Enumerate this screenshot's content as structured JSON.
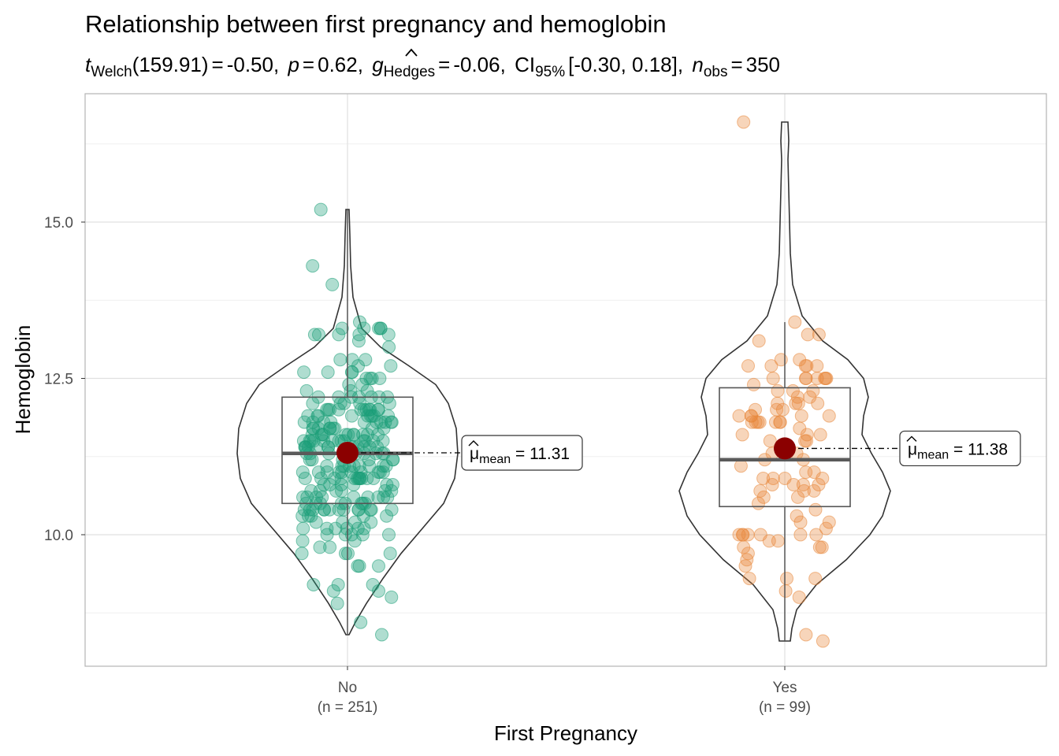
{
  "chart_data": {
    "type": "violin-box-scatter",
    "title": "Relationship between first pregnancy and hemoglobin",
    "subtitle": {
      "t_sym": "t",
      "t_sub": "Welch",
      "df": "(159.91)",
      "t_val": "-0.50",
      "p_sym": "p",
      "p_val": "0.62",
      "g_sym": "g",
      "g_sub": "Hedges",
      "g_val": "-0.06",
      "ci_sym": "CI",
      "ci_sub": "95%",
      "ci_val": "[-0.30, 0.18]",
      "n_sym": "n",
      "n_sub": "obs",
      "n_val": "350",
      "eq": "=",
      "sep": ","
    },
    "xlabel": "First Pregnancy",
    "ylabel": "Hemoglobin",
    "ylim": [
      7.7,
      16.9
    ],
    "yticks": [
      10.0,
      12.5,
      15.0
    ],
    "ytick_labels": [
      "10.0",
      "12.5",
      "15.0"
    ],
    "grid": true,
    "groups": [
      {
        "name": "No",
        "n_label": "(n = 251)",
        "color": "#1b9e77",
        "box": {
          "q1": 10.5,
          "median": 11.3,
          "q3": 12.2,
          "whisker_low": 8.4,
          "whisker_high": 15.2
        },
        "mean": 11.31,
        "mean_label_sym": "μ",
        "mean_label_sub": "mean",
        "mean_label_val": "= 11.31",
        "violin_min": 8.4,
        "violin_max": 15.2
      },
      {
        "name": "Yes",
        "n_label": "(n = 99)",
        "color": "#e7873a",
        "box": {
          "q1": 10.45,
          "median": 11.2,
          "q3": 12.35,
          "whisker_low": 8.3,
          "whisker_high": 13.4
        },
        "mean": 11.38,
        "mean_label_sym": "μ",
        "mean_label_sub": "mean",
        "mean_label_val": "= 11.38",
        "violin_min": 8.3,
        "violin_max": 16.6
      }
    ],
    "colors": {
      "mean_point": "#8b0000",
      "box_line": "#555555",
      "violin_line": "#333333",
      "grid": "#e5e5e5",
      "panel_border": "#b3b3b3"
    }
  }
}
